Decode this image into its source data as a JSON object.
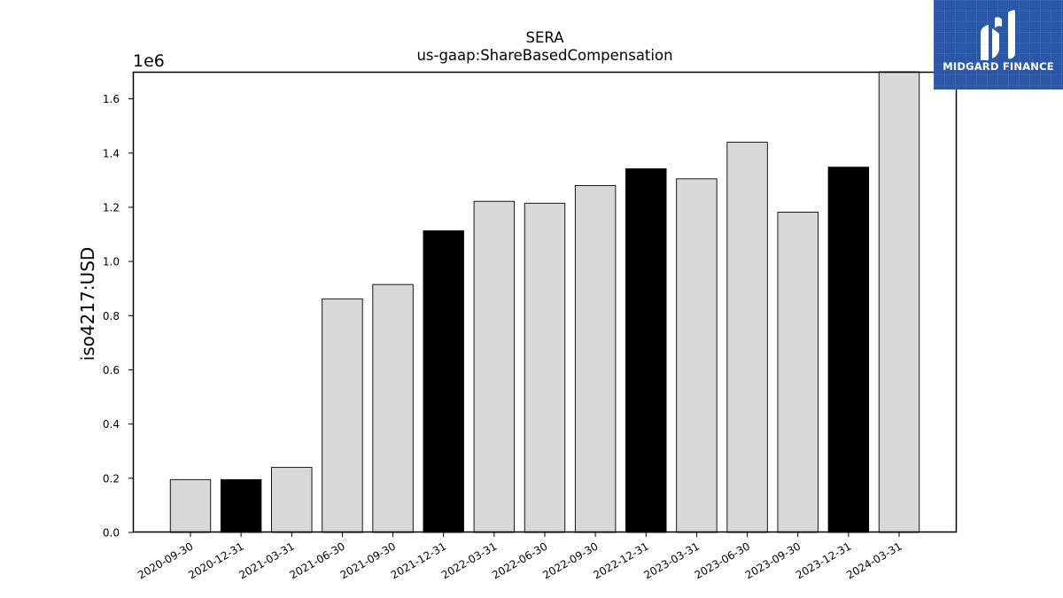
{
  "chart_data": {
    "type": "bar",
    "title": "SERA",
    "subtitle": "us-gaap:ShareBasedCompensation",
    "xlabel": "",
    "ylabel": "iso4217:USD",
    "offset_label": "1e6",
    "categories": [
      "2020-09-30",
      "2020-12-31",
      "2021-03-31",
      "2021-06-30",
      "2021-09-30",
      "2021-12-31",
      "2022-03-31",
      "2022-06-30",
      "2022-09-30",
      "2022-12-31",
      "2023-03-31",
      "2023-06-30",
      "2023-09-30",
      "2023-12-31",
      "2024-03-31"
    ],
    "values": [
      195000,
      195000,
      240000,
      862000,
      915000,
      1113000,
      1222000,
      1215000,
      1280000,
      1342000,
      1305000,
      1440000,
      1182000,
      1348000,
      1700000
    ],
    "bar_colors": [
      "#d8d8d8",
      "#000000",
      "#d8d8d8",
      "#d8d8d8",
      "#d8d8d8",
      "#000000",
      "#d8d8d8",
      "#d8d8d8",
      "#d8d8d8",
      "#000000",
      "#d8d8d8",
      "#d8d8d8",
      "#d8d8d8",
      "#000000",
      "#d8d8d8"
    ],
    "ylim": [
      0,
      1700000
    ],
    "yticks": [
      0,
      200000,
      400000,
      600000,
      800000,
      1000000,
      1200000,
      1400000,
      1600000
    ],
    "ytick_labels": [
      "0.0",
      "0.2",
      "0.4",
      "0.6",
      "0.8",
      "1.0",
      "1.2",
      "1.4",
      "1.6"
    ],
    "grid": false,
    "legend": "none"
  },
  "logo": {
    "text": "MIDGARD FINANCE",
    "background": "#2a58a8",
    "icon": "midgard-logo-icon"
  }
}
